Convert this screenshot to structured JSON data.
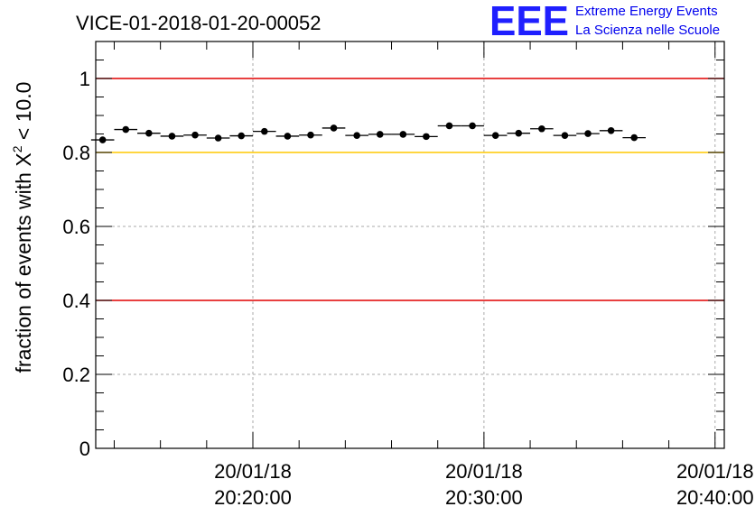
{
  "chart_data": {
    "type": "scatter",
    "title": "VICE-01-2018-01-20-00052",
    "ylabel_prefix": "fraction of events with X",
    "ylabel_sup": "2",
    "ylabel_suffix": " < 10.0",
    "xlabel": "",
    "xlim_minutes": [
      13.2,
      40.4
    ],
    "ylim": [
      0,
      1.1
    ],
    "y_ticks": [
      {
        "value": 0,
        "label": "0"
      },
      {
        "value": 0.2,
        "label": "0.2"
      },
      {
        "value": 0.4,
        "label": "0.4"
      },
      {
        "value": 0.6,
        "label": "0.6"
      },
      {
        "value": 0.8,
        "label": "0.8"
      },
      {
        "value": 1,
        "label": "1"
      }
    ],
    "x_ticks": [
      {
        "minute": 20,
        "date": "20/01/18",
        "time": "20:20:00"
      },
      {
        "minute": 30,
        "date": "20/01/18",
        "time": "20:30:00"
      },
      {
        "minute": 40,
        "date": "20/01/18",
        "time": "20:40:00"
      }
    ],
    "grid": true,
    "reference_lines": [
      {
        "y": 1.0,
        "color": "#e00000"
      },
      {
        "y": 0.8,
        "color": "#ffc800"
      },
      {
        "y": 0.4,
        "color": "#e00000"
      }
    ],
    "bin_width_minutes": 1.0,
    "series": [
      {
        "marker_color": "#000000",
        "points": [
          {
            "x": "20:13:30",
            "y": 0.834
          },
          {
            "x": "20:14:30",
            "y": 0.862
          },
          {
            "x": "20:15:30",
            "y": 0.852
          },
          {
            "x": "20:16:30",
            "y": 0.844
          },
          {
            "x": "20:17:30",
            "y": 0.847
          },
          {
            "x": "20:18:30",
            "y": 0.839
          },
          {
            "x": "20:19:30",
            "y": 0.845
          },
          {
            "x": "20:20:30",
            "y": 0.857
          },
          {
            "x": "20:21:30",
            "y": 0.844
          },
          {
            "x": "20:22:30",
            "y": 0.847
          },
          {
            "x": "20:23:30",
            "y": 0.866
          },
          {
            "x": "20:24:30",
            "y": 0.846
          },
          {
            "x": "20:25:30",
            "y": 0.849
          },
          {
            "x": "20:26:30",
            "y": 0.849
          },
          {
            "x": "20:27:30",
            "y": 0.843
          },
          {
            "x": "20:28:30",
            "y": 0.872
          },
          {
            "x": "20:29:30",
            "y": 0.872
          },
          {
            "x": "20:30:30",
            "y": 0.846
          },
          {
            "x": "20:31:30",
            "y": 0.852
          },
          {
            "x": "20:32:30",
            "y": 0.864
          },
          {
            "x": "20:33:30",
            "y": 0.846
          },
          {
            "x": "20:34:30",
            "y": 0.851
          },
          {
            "x": "20:35:30",
            "y": 0.859
          },
          {
            "x": "20:36:30",
            "y": 0.84
          }
        ]
      }
    ]
  },
  "logo": {
    "mark": "EEE",
    "line1": "Extreme Energy Events",
    "line2": "La Scienza nelle Scuole",
    "color": "#1f1fff"
  }
}
